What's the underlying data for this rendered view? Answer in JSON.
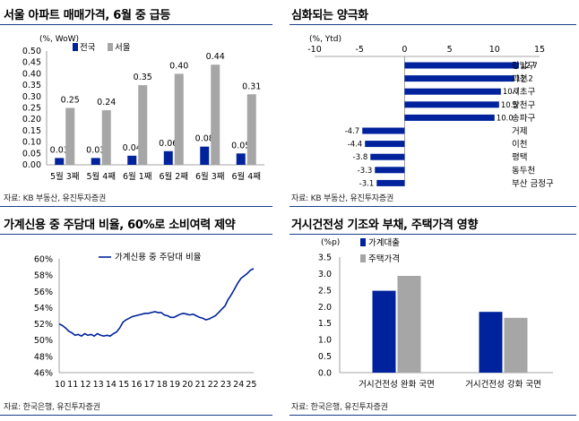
{
  "panels": {
    "p1": {
      "title": "서울 아파트 매매가격, 6월 중 급등",
      "source": "자료: KB 부동산, 유진투자증권"
    },
    "p2": {
      "title": "심화되는 양극화",
      "source": "자료: KB 부동산, 유진투자증권"
    },
    "p3": {
      "title": "가계신용 중 주담대 비율, 60%로 소비여력 제약",
      "source": "자료: 한국은행, 유진투자증권"
    },
    "p4": {
      "title": "거시건전성 기조와 부채, 주택가격 영향",
      "source": "자료: 한국은행, 유진투자증권"
    }
  },
  "colors": {
    "navy": "#00229c",
    "gray": "#a6a6a6",
    "rule": "#1a3e8c"
  },
  "chart_data": [
    {
      "id": "c1",
      "type": "bar",
      "unit_label": "(%, WoW)",
      "categories": [
        "5월 3째",
        "5월 4째",
        "6월 1째",
        "6월 2째",
        "6월 3째",
        "6월 4째"
      ],
      "series": [
        {
          "name": "전국",
          "values": [
            0.03,
            0.03,
            0.04,
            0.06,
            0.08,
            0.05
          ],
          "color": "#00229c"
        },
        {
          "name": "서울",
          "values": [
            0.25,
            0.24,
            0.35,
            0.4,
            0.44,
            0.31
          ],
          "color": "#a6a6a6"
        }
      ],
      "value_labels": [
        [
          "0.03",
          "0.03",
          "0.04",
          "0.06",
          "0.08",
          "0.05"
        ],
        [
          "0.25",
          "0.24",
          "0.35",
          "0.40",
          "0.44",
          "0.31"
        ]
      ],
      "ylim": [
        0,
        0.5
      ],
      "yticks": [
        "0.00",
        "0.05",
        "0.10",
        "0.15",
        "0.20",
        "0.25",
        "0.30",
        "0.35",
        "0.40",
        "0.45",
        "0.50"
      ],
      "legend": "top-left"
    },
    {
      "id": "c2",
      "type": "bar",
      "orientation": "horizontal",
      "unit_label": "(%, Ytd)",
      "categories": [
        "강남구",
        "과천",
        "서초구",
        "양천구",
        "송파구",
        "거제",
        "이천",
        "평택",
        "동두천",
        "부산 금정구"
      ],
      "values": [
        12.7,
        12.2,
        10.7,
        10.5,
        10.0,
        -4.7,
        -4.4,
        -3.8,
        -3.3,
        -3.1
      ],
      "value_labels": [
        "12.7",
        "12.2",
        "10.7",
        "10.5",
        "10.0",
        "-4.7",
        "-4.4",
        "-3.8",
        "-3.3",
        "-3.1"
      ],
      "xlim": [
        -10,
        15
      ],
      "xticks": [
        "-10",
        "-5",
        "0",
        "5",
        "10",
        "15"
      ],
      "color": "#00229c"
    },
    {
      "id": "c3",
      "type": "line",
      "series": [
        {
          "name": "가계신용 중 주담대 비율",
          "color": "#00229c",
          "x": [
            10.0,
            10.25,
            10.5,
            10.75,
            11.0,
            11.25,
            11.5,
            11.75,
            12.0,
            12.25,
            12.5,
            12.75,
            13.0,
            13.25,
            13.5,
            13.75,
            14.0,
            14.25,
            14.5,
            14.75,
            15.0,
            15.25,
            15.5,
            15.75,
            16.0,
            16.25,
            16.5,
            16.75,
            17.0,
            17.25,
            17.5,
            17.75,
            18.0,
            18.25,
            18.5,
            18.75,
            19.0,
            19.25,
            19.5,
            19.75,
            20.0,
            20.25,
            20.5,
            20.75,
            21.0,
            21.25,
            21.5,
            21.75,
            22.0,
            22.25,
            22.5,
            22.75,
            23.0,
            23.25,
            23.5,
            23.75,
            24.0,
            24.25,
            24.5,
            24.75,
            25.0,
            25.25
          ],
          "y": [
            52.0,
            51.8,
            51.5,
            51.1,
            50.9,
            50.6,
            50.7,
            50.5,
            50.8,
            50.6,
            50.7,
            50.5,
            50.8,
            50.6,
            50.5,
            50.6,
            50.5,
            50.8,
            51.0,
            51.5,
            52.2,
            52.5,
            52.7,
            52.9,
            53.0,
            53.1,
            53.2,
            53.3,
            53.3,
            53.4,
            53.5,
            53.4,
            53.4,
            53.1,
            53.0,
            52.8,
            52.8,
            53.0,
            53.2,
            53.3,
            53.2,
            53.1,
            53.2,
            53.0,
            52.8,
            52.7,
            52.5,
            52.6,
            52.8,
            53.0,
            53.4,
            53.8,
            54.2,
            55.0,
            55.6,
            56.3,
            57.0,
            57.6,
            57.9,
            58.2,
            58.6,
            58.8
          ]
        }
      ],
      "xticks": [
        "10",
        "11",
        "12",
        "13",
        "14",
        "15",
        "16",
        "17",
        "18",
        "19",
        "20",
        "21",
        "22",
        "23",
        "24",
        "25"
      ],
      "yticks": [
        "46%",
        "48%",
        "50%",
        "52%",
        "54%",
        "56%",
        "58%",
        "60%"
      ],
      "ylim": [
        46,
        60
      ],
      "legend": "top-center"
    },
    {
      "id": "c4",
      "type": "bar",
      "unit_label": "(%p)",
      "categories": [
        "거시건전성 완화 국면",
        "거시건전성 강화 국면"
      ],
      "series": [
        {
          "name": "가계대출",
          "values": [
            2.48,
            1.84
          ],
          "color": "#00229c"
        },
        {
          "name": "주택가격",
          "values": [
            2.93,
            1.66
          ],
          "color": "#a6a6a6"
        }
      ],
      "ylim": [
        0,
        3.5
      ],
      "yticks": [
        "0.0",
        "0.5",
        "1.0",
        "1.5",
        "2.0",
        "2.5",
        "3.0",
        "3.5"
      ],
      "legend": "top-left"
    }
  ]
}
